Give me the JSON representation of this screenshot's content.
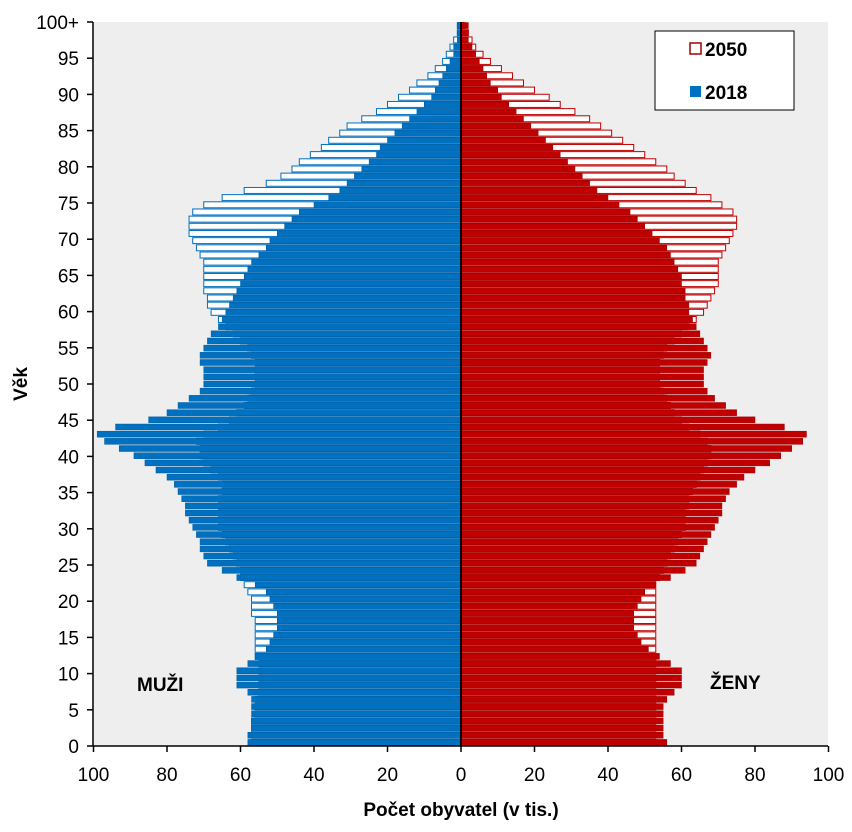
{
  "chart_data": {
    "type": "bar",
    "orientation": "horizontal-population-pyramid",
    "xlabel": "Počet obyvatel (v tis.)",
    "ylabel": "Věk",
    "xlim": [
      -100,
      100
    ],
    "ylim": [
      0,
      100
    ],
    "x_tick_values": [
      -100,
      -80,
      -60,
      -40,
      -20,
      0,
      20,
      40,
      60,
      80,
      100
    ],
    "x_tick_labels": [
      "100",
      "80",
      "60",
      "40",
      "20",
      "0",
      "20",
      "40",
      "60",
      "80",
      "100"
    ],
    "y_tick_values": [
      0,
      5,
      10,
      15,
      20,
      25,
      30,
      35,
      40,
      45,
      50,
      55,
      60,
      65,
      70,
      75,
      80,
      85,
      90,
      95,
      100
    ],
    "y_tick_labels": [
      "0",
      "5",
      "10",
      "15",
      "20",
      "25",
      "30",
      "35",
      "40",
      "45",
      "50",
      "55",
      "60",
      "65",
      "70",
      "75",
      "80",
      "85",
      "90",
      "95",
      "100+"
    ],
    "side_labels": {
      "men": "MUŽI",
      "women": "ŽENY"
    },
    "colors": {
      "plot_bg": "#eeeeee",
      "men_2018": "#0070c0",
      "women_2018": "#c00000",
      "bar_2050_fill": "#ffffff",
      "men_2050_stroke": "#0070c0",
      "women_2050_stroke": "#c00000",
      "legend_2050_stroke": "#a00000",
      "legend_2018_fill": "#0070c0"
    },
    "legend_position": "top-right",
    "series": [
      {
        "name": "2050",
        "style": "outline",
        "men": [
          57,
          57,
          57,
          57,
          56,
          56,
          56,
          55,
          55,
          55,
          55,
          55,
          56,
          56,
          56,
          56,
          56,
          56,
          57,
          57,
          57,
          58,
          59,
          60,
          60,
          61,
          62,
          63,
          64,
          65,
          66,
          66,
          66,
          66,
          66,
          65,
          65,
          66,
          68,
          70,
          71,
          71,
          72,
          70,
          66,
          63,
          61,
          59,
          58,
          57,
          56,
          56,
          56,
          56,
          57,
          58,
          60,
          62,
          64,
          66,
          68,
          69,
          69,
          70,
          70,
          70,
          70,
          70,
          71,
          72,
          73,
          74,
          74,
          74,
          73,
          70,
          65,
          59,
          53,
          49,
          46,
          44,
          41,
          38,
          36,
          33,
          31,
          27,
          23,
          20,
          17,
          14,
          12,
          9,
          7,
          5,
          4,
          3,
          2,
          1,
          1
        ],
        "women": [
          53,
          53,
          53,
          53,
          53,
          53,
          53,
          53,
          53,
          53,
          53,
          53,
          53,
          53,
          53,
          53,
          53,
          53,
          53,
          53,
          53,
          53,
          53,
          54,
          55,
          56,
          57,
          58,
          59,
          60,
          61,
          61,
          61,
          62,
          62,
          63,
          64,
          65,
          66,
          67,
          68,
          68,
          67,
          65,
          62,
          60,
          58,
          57,
          56,
          55,
          54,
          54,
          54,
          54,
          55,
          56,
          58,
          60,
          62,
          64,
          66,
          67,
          68,
          69,
          70,
          70,
          70,
          70,
          71,
          72,
          73,
          74,
          75,
          75,
          74,
          71,
          68,
          64,
          61,
          58,
          56,
          53,
          50,
          47,
          44,
          41,
          38,
          35,
          31,
          27,
          24,
          20,
          17,
          14,
          11,
          8,
          6,
          4,
          3,
          2,
          1
        ]
      },
      {
        "name": "2018",
        "style": "solid",
        "men": [
          58,
          58,
          57,
          57,
          57,
          57,
          57,
          58,
          61,
          61,
          61,
          58,
          56,
          53,
          52,
          51,
          50,
          50,
          50,
          51,
          52,
          53,
          56,
          61,
          65,
          69,
          70,
          71,
          71,
          72,
          73,
          74,
          75,
          75,
          76,
          77,
          78,
          80,
          83,
          86,
          89,
          93,
          97,
          99,
          94,
          85,
          80,
          77,
          74,
          71,
          70,
          70,
          70,
          71,
          71,
          70,
          69,
          68,
          66,
          65,
          64,
          63,
          62,
          61,
          60,
          59,
          58,
          57,
          55,
          53,
          52,
          50,
          48,
          46,
          44,
          40,
          36,
          33,
          31,
          29,
          27,
          25,
          23,
          22,
          20,
          18,
          16,
          14,
          12,
          10,
          8,
          7,
          6,
          5,
          4,
          3,
          2,
          2,
          1,
          1,
          1
        ],
        "women": [
          56,
          55,
          55,
          55,
          55,
          55,
          56,
          58,
          60,
          60,
          60,
          57,
          54,
          51,
          49,
          48,
          47,
          47,
          47,
          48,
          49,
          50,
          53,
          57,
          61,
          64,
          65,
          66,
          67,
          68,
          69,
          70,
          71,
          71,
          72,
          73,
          75,
          77,
          80,
          84,
          87,
          90,
          93,
          94,
          88,
          80,
          75,
          72,
          69,
          67,
          66,
          66,
          66,
          67,
          68,
          67,
          66,
          65,
          64,
          63,
          62,
          62,
          61,
          61,
          60,
          60,
          59,
          58,
          57,
          56,
          54,
          52,
          50,
          48,
          46,
          43,
          40,
          37,
          35,
          33,
          31,
          29,
          27,
          25,
          23,
          21,
          19,
          17,
          15,
          13,
          11,
          10,
          8,
          7,
          6,
          5,
          4,
          3,
          2,
          2,
          2
        ]
      }
    ]
  }
}
